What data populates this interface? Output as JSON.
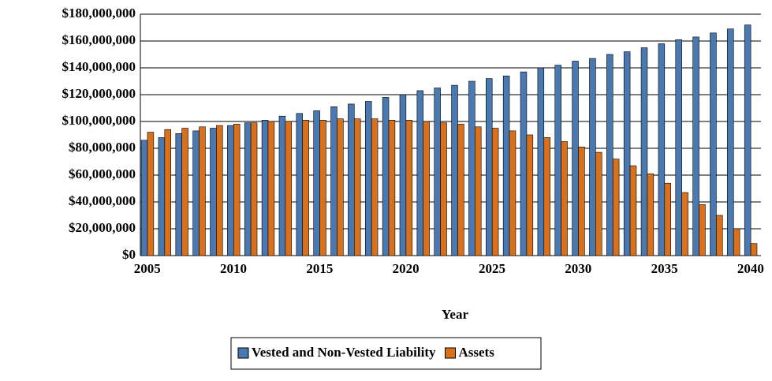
{
  "chart_data": {
    "type": "bar",
    "xlabel": "Year",
    "categories": [
      "2005",
      null,
      null,
      null,
      null,
      "2010",
      null,
      null,
      null,
      null,
      "2015",
      null,
      null,
      null,
      null,
      "2020",
      null,
      null,
      null,
      null,
      "2025",
      null,
      null,
      null,
      null,
      "2030",
      null,
      null,
      null,
      null,
      "2035",
      null,
      null,
      null,
      null,
      "2040"
    ],
    "series": [
      {
        "name": "Vested and Non-Vested Liability",
        "color": "#4a78b0",
        "values": [
          86000000,
          88000000,
          91000000,
          93000000,
          95000000,
          97000000,
          99000000,
          101000000,
          104000000,
          106000000,
          108000000,
          111000000,
          113000000,
          115000000,
          118000000,
          120000000,
          123000000,
          125000000,
          127000000,
          130000000,
          132000000,
          134000000,
          137000000,
          140000000,
          142000000,
          145000000,
          147000000,
          150000000,
          152000000,
          155000000,
          158000000,
          161000000,
          163000000,
          166000000,
          169000000,
          172000000
        ]
      },
      {
        "name": "Assets",
        "color": "#d9711c",
        "values": [
          92000000,
          94000000,
          95000000,
          96000000,
          97000000,
          98000000,
          99000000,
          100000000,
          100000000,
          101000000,
          101000000,
          102000000,
          102000000,
          102000000,
          101000000,
          101000000,
          100000000,
          99000000,
          98000000,
          96000000,
          95000000,
          93000000,
          90000000,
          88000000,
          85000000,
          81000000,
          77000000,
          72000000,
          67000000,
          61000000,
          54000000,
          47000000,
          38000000,
          30000000,
          20000000,
          9000000
        ]
      }
    ],
    "ylim": [
      0,
      180000000
    ],
    "yticks": [
      {
        "value": 0,
        "label": "$0"
      },
      {
        "value": 20000000,
        "label": "$20,000,000"
      },
      {
        "value": 40000000,
        "label": "$40,000,000"
      },
      {
        "value": 60000000,
        "label": "$60,000,000"
      },
      {
        "value": 80000000,
        "label": "$80,000,000"
      },
      {
        "value": 100000000,
        "label": "$100,000,000"
      },
      {
        "value": 120000000,
        "label": "$120,000,000"
      },
      {
        "value": 140000000,
        "label": "$140,000,000"
      },
      {
        "value": 160000000,
        "label": "$160,000,000"
      },
      {
        "value": 180000000,
        "label": "$180,000,000"
      }
    ],
    "grid": true,
    "legend": "bottom"
  }
}
